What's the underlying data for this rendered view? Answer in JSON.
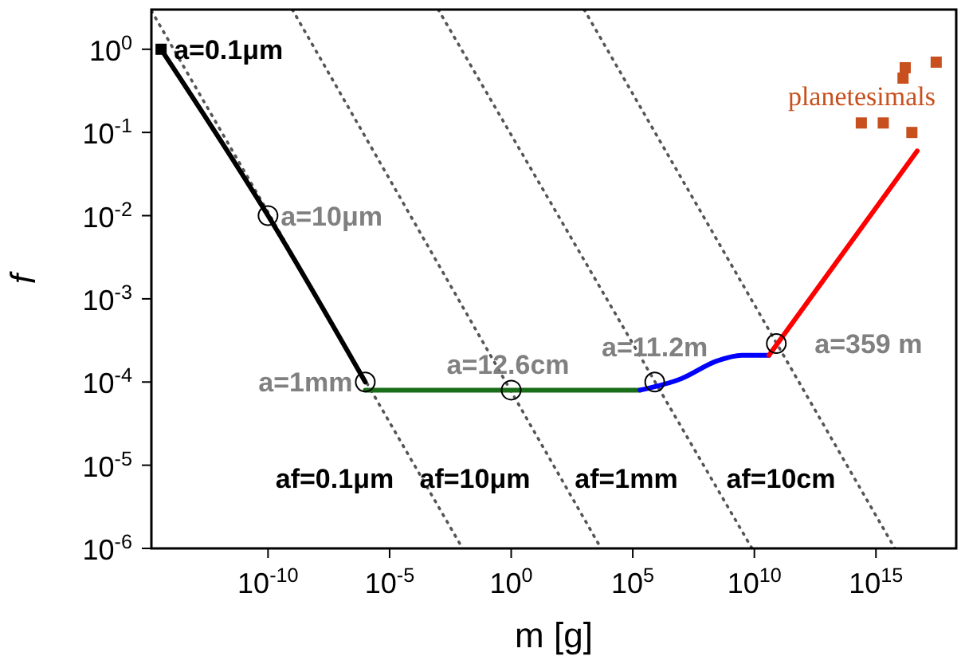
{
  "chart_data": {
    "type": "line",
    "xlabel": "m [g]",
    "ylabel": "f",
    "log": "xy",
    "grid": false,
    "xlim": [
      1.6e-15,
      2e+18
    ],
    "ylim": [
      1e-06,
      3
    ],
    "xticks": [
      {
        "value": 1e-10,
        "label": "10$^{-10}$"
      },
      {
        "value": 1e-05,
        "label": "10$^{-5}$"
      },
      {
        "value": 1,
        "label": "10$^{0}$"
      },
      {
        "value": 100000.0,
        "label": "10$^{5}$"
      },
      {
        "value": 10000000000.0,
        "label": "10$^{10}$"
      },
      {
        "value": 1000000000000000.0,
        "label": "10$^{15}$"
      }
    ],
    "yticks": [
      {
        "value": 1e-06,
        "label": "10$^{-6}$"
      },
      {
        "value": 1e-05,
        "label": "10$^{-5}$"
      },
      {
        "value": 0.0001,
        "label": "10$^{-4}$"
      },
      {
        "value": 0.001,
        "label": "10$^{-3}$"
      },
      {
        "value": 0.01,
        "label": "10$^{-2}$"
      },
      {
        "value": 0.1,
        "label": "10$^{-1}$"
      },
      {
        "value": 1,
        "label": "10$^{0}$"
      }
    ],
    "series": [
      {
        "color": "#555555",
        "line_style": "dotted",
        "marker": "none",
        "x": [
          1.6e-15,
          0.01
        ],
        "values": [
          2.9,
          1e-06
        ]
      },
      {
        "color": "#555555",
        "line_style": "dotted",
        "marker": "none",
        "x": [
          1e-09,
          5000.0
        ],
        "values": [
          3,
          1e-06
        ]
      },
      {
        "color": "#555555",
        "line_style": "dotted",
        "marker": "none",
        "x": [
          0.001,
          8000000000.0
        ],
        "values": [
          3,
          1e-06
        ]
      },
      {
        "color": "#555555",
        "line_style": "dotted",
        "marker": "none",
        "x": [
          1000.0,
          6000000000000000.0
        ],
        "values": [
          3,
          1e-06
        ]
      },
      {
        "color": "#000000",
        "line_style": "solid",
        "marker": "none",
        "x": [
          4e-15,
          1e-10,
          1e-06
        ],
        "values": [
          1,
          0.01,
          0.0001
        ]
      },
      {
        "color": "#1a6e1a",
        "line_style": "solid",
        "marker": "none",
        "x": [
          1e-06,
          200000.0
        ],
        "values": [
          8e-05,
          8e-05
        ]
      },
      {
        "color": "#0000ff",
        "line_style": "solid",
        "marker": "none",
        "x": [
          200000.0,
          10000000.0,
          300000000.0,
          3000000000.0,
          40000000000.0
        ],
        "values": [
          8e-05,
          0.00011,
          0.00018,
          0.00021,
          0.00021
        ]
      },
      {
        "color": "#ff0000",
        "line_style": "solid",
        "marker": "none",
        "x": [
          40000000000.0,
          5e+16
        ],
        "values": [
          0.00021,
          0.06
        ]
      },
      {
        "type": "scatter",
        "color": "#000000",
        "marker": "square",
        "x": [
          4e-15
        ],
        "values": [
          1
        ]
      },
      {
        "type": "scatter",
        "color": "#000000",
        "marker": "circle",
        "x": [
          1e-10,
          1e-06,
          1,
          800000.0,
          80000000000.0
        ],
        "values": [
          0.01,
          0.0001,
          8e-05,
          0.0001,
          0.00029
        ]
      },
      {
        "type": "scatter",
        "color": "#c8501e",
        "marker": "square",
        "x": [
          250000000000000.0,
          2000000000000000.0,
          3e+16,
          1.6e+16,
          3e+17,
          1.3e+16
        ],
        "values": [
          0.13,
          0.13,
          0.1,
          0.6,
          0.7,
          0.45
        ]
      }
    ],
    "annotations": [
      {
        "text": "a=0.1μm",
        "x": 4e-15,
        "y": 1
      },
      {
        "text": "a=10μm",
        "x": 1e-10,
        "y": 0.01
      },
      {
        "text": "a=1mm",
        "x": 1e-06,
        "y": 0.0001
      },
      {
        "text": "a=12.6cm",
        "x": 1,
        "y": 8e-05
      },
      {
        "text": "a=11.2m",
        "x": 800000.0,
        "y": 0.0001
      },
      {
        "text": "a=359 m",
        "x": 80000000000.0,
        "y": 0.00029
      },
      {
        "text": "planetesimals",
        "x": 250000000000000.0,
        "y": 0.13
      },
      "af=0.1μm",
      "af=10μm",
      "af=1mm",
      "af=10cm"
    ]
  }
}
